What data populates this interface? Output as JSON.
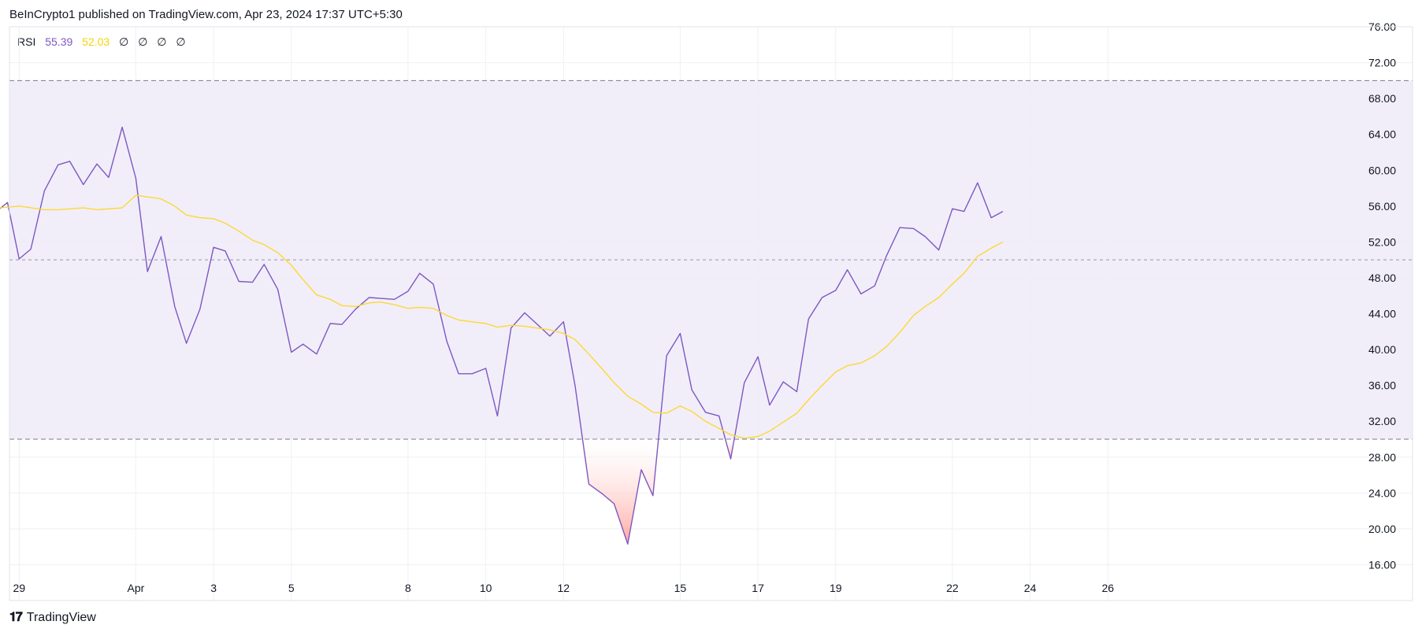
{
  "header": {
    "text": "BeInCrypto1 published on TradingView.com, Apr 23, 2024 17:37 UTC+5:30"
  },
  "legend": {
    "label": "RSI",
    "rsi_value": "55.39",
    "ma_value": "52.03",
    "extra": [
      "∅",
      "∅",
      "∅",
      "∅"
    ]
  },
  "footer": {
    "logo_mark": "𝟏𝟕",
    "logo_text": "TradingView"
  },
  "colors": {
    "rsi": "#7e57c2",
    "ma": "#fdd835",
    "band": "#efebf8",
    "oversold_fill": "#ffcdd2",
    "grid": "#eef0f3"
  },
  "chart_data": {
    "type": "line",
    "title": "",
    "xlabel": "",
    "ylabel": "",
    "ylim": [
      12,
      76
    ],
    "xlim": [
      -0.25,
      30
    ],
    "yticks": [
      "16.00",
      "20.00",
      "24.00",
      "28.00",
      "32.00",
      "36.00",
      "40.00",
      "44.00",
      "48.00",
      "52.00",
      "56.00",
      "60.00",
      "64.00",
      "68.00",
      "72.00",
      "76.00"
    ],
    "xticks": [
      {
        "label": "29",
        "x": 0
      },
      {
        "label": "Apr",
        "x": 3
      },
      {
        "label": "3",
        "x": 5
      },
      {
        "label": "5",
        "x": 7
      },
      {
        "label": "8",
        "x": 10
      },
      {
        "label": "10",
        "x": 12
      },
      {
        "label": "12",
        "x": 14
      },
      {
        "label": "15",
        "x": 17
      },
      {
        "label": "17",
        "x": 19
      },
      {
        "label": "19",
        "x": 21
      },
      {
        "label": "22",
        "x": 24
      },
      {
        "label": "24",
        "x": 26
      },
      {
        "label": "26",
        "x": 28
      }
    ],
    "levels": {
      "upper": 70,
      "middle": 50,
      "lower": 30
    },
    "series": [
      {
        "name": "RSI",
        "values": [
          [
            -0.5,
            55.7
          ],
          [
            -0.3,
            56.4
          ],
          [
            0,
            50.1
          ],
          [
            0.3,
            51.2
          ],
          [
            0.65,
            57.7
          ],
          [
            1,
            60.6
          ],
          [
            1.3,
            61.0
          ],
          [
            1.65,
            58.4
          ],
          [
            2,
            60.7
          ],
          [
            2.3,
            59.2
          ],
          [
            2.65,
            64.8
          ],
          [
            3,
            59.1
          ],
          [
            3.3,
            48.7
          ],
          [
            3.65,
            52.6
          ],
          [
            4,
            44.8
          ],
          [
            4.3,
            40.7
          ],
          [
            4.65,
            44.5
          ],
          [
            5,
            51.4
          ],
          [
            5.3,
            51.0
          ],
          [
            5.65,
            47.6
          ],
          [
            6,
            47.5
          ],
          [
            6.3,
            49.5
          ],
          [
            6.65,
            46.7
          ],
          [
            7,
            39.7
          ],
          [
            7.3,
            40.6
          ],
          [
            7.65,
            39.5
          ],
          [
            8,
            42.9
          ],
          [
            8.3,
            42.8
          ],
          [
            8.65,
            44.5
          ],
          [
            9,
            45.8
          ],
          [
            9.3,
            45.7
          ],
          [
            9.65,
            45.6
          ],
          [
            10,
            46.5
          ],
          [
            10.3,
            48.5
          ],
          [
            10.65,
            47.3
          ],
          [
            11,
            40.9
          ],
          [
            11.3,
            37.3
          ],
          [
            11.65,
            37.3
          ],
          [
            12,
            37.9
          ],
          [
            12.3,
            32.6
          ],
          [
            12.65,
            42.4
          ],
          [
            13,
            44.1
          ],
          [
            13.3,
            42.9
          ],
          [
            13.65,
            41.5
          ],
          [
            14,
            43.1
          ],
          [
            14.3,
            35.9
          ],
          [
            14.65,
            25.0
          ],
          [
            15,
            23.9
          ],
          [
            15.3,
            22.8
          ],
          [
            15.65,
            18.3
          ],
          [
            16,
            26.6
          ],
          [
            16.3,
            23.7
          ],
          [
            16.65,
            39.3
          ],
          [
            17,
            41.8
          ],
          [
            17.3,
            35.5
          ],
          [
            17.65,
            33.0
          ],
          [
            18,
            32.6
          ],
          [
            18.3,
            27.8
          ],
          [
            18.65,
            36.3
          ],
          [
            19,
            39.2
          ],
          [
            19.3,
            33.8
          ],
          [
            19.65,
            36.4
          ],
          [
            20,
            35.3
          ],
          [
            20.3,
            43.4
          ],
          [
            20.65,
            45.8
          ],
          [
            21,
            46.6
          ],
          [
            21.3,
            48.9
          ],
          [
            21.65,
            46.2
          ],
          [
            22,
            47.1
          ],
          [
            22.3,
            50.4
          ],
          [
            22.65,
            53.6
          ],
          [
            23,
            53.5
          ],
          [
            23.3,
            52.6
          ],
          [
            23.65,
            51.1
          ],
          [
            24,
            55.7
          ],
          [
            24.3,
            55.4
          ],
          [
            24.65,
            58.6
          ],
          [
            25,
            54.7
          ],
          [
            25.3,
            55.4
          ]
        ]
      },
      {
        "name": "RSI-based MA",
        "values": [
          [
            -0.5,
            55.8
          ],
          [
            0,
            56.0
          ],
          [
            0.65,
            55.6
          ],
          [
            1,
            55.6
          ],
          [
            1.65,
            55.8
          ],
          [
            2,
            55.6
          ],
          [
            2.65,
            55.8
          ],
          [
            3,
            57.2
          ],
          [
            3.65,
            56.8
          ],
          [
            4,
            56.0
          ],
          [
            4.3,
            55.0
          ],
          [
            4.65,
            54.7
          ],
          [
            5,
            54.6
          ],
          [
            5.3,
            54.1
          ],
          [
            5.65,
            53.2
          ],
          [
            6,
            52.2
          ],
          [
            6.3,
            51.7
          ],
          [
            6.65,
            50.8
          ],
          [
            7,
            49.4
          ],
          [
            7.3,
            47.8
          ],
          [
            7.65,
            46.1
          ],
          [
            8,
            45.6
          ],
          [
            8.3,
            44.9
          ],
          [
            8.65,
            44.8
          ],
          [
            9,
            45.2
          ],
          [
            9.3,
            45.3
          ],
          [
            9.65,
            45.0
          ],
          [
            10,
            44.6
          ],
          [
            10.3,
            44.7
          ],
          [
            10.65,
            44.6
          ],
          [
            11,
            43.8
          ],
          [
            11.3,
            43.3
          ],
          [
            11.65,
            43.1
          ],
          [
            12,
            42.9
          ],
          [
            12.3,
            42.5
          ],
          [
            12.65,
            42.7
          ],
          [
            13,
            42.6
          ],
          [
            13.3,
            42.4
          ],
          [
            13.65,
            42.2
          ],
          [
            14,
            41.8
          ],
          [
            14.3,
            41.1
          ],
          [
            14.65,
            39.5
          ],
          [
            15,
            37.8
          ],
          [
            15.3,
            36.3
          ],
          [
            15.65,
            34.8
          ],
          [
            16,
            33.9
          ],
          [
            16.3,
            33.0
          ],
          [
            16.65,
            32.9
          ],
          [
            17,
            33.7
          ],
          [
            17.3,
            33.1
          ],
          [
            17.65,
            32.0
          ],
          [
            18,
            31.2
          ],
          [
            18.3,
            30.5
          ],
          [
            18.65,
            30.1
          ],
          [
            19,
            30.3
          ],
          [
            19.3,
            30.9
          ],
          [
            19.65,
            31.9
          ],
          [
            20,
            32.9
          ],
          [
            20.3,
            34.4
          ],
          [
            20.65,
            36.0
          ],
          [
            21,
            37.5
          ],
          [
            21.3,
            38.2
          ],
          [
            21.65,
            38.5
          ],
          [
            22,
            39.3
          ],
          [
            22.3,
            40.3
          ],
          [
            22.65,
            41.9
          ],
          [
            23,
            43.8
          ],
          [
            23.3,
            44.8
          ],
          [
            23.65,
            45.8
          ],
          [
            24,
            47.3
          ],
          [
            24.3,
            48.5
          ],
          [
            24.65,
            50.4
          ],
          [
            25,
            51.3
          ],
          [
            25.3,
            52.0
          ]
        ]
      }
    ]
  }
}
